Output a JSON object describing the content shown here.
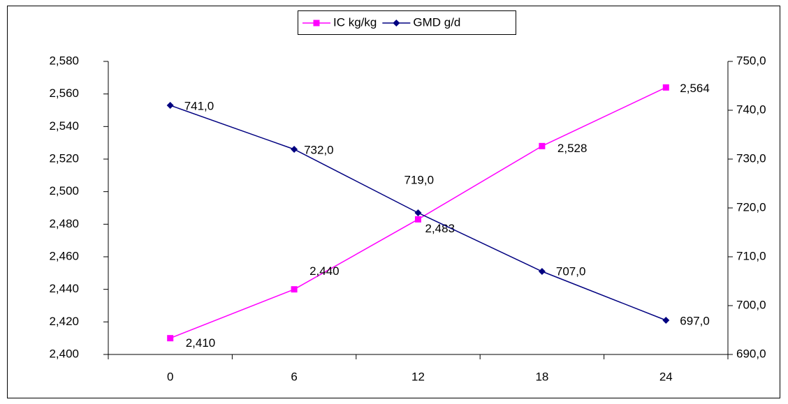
{
  "chart_data": {
    "type": "line",
    "categories": [
      "0",
      "6",
      "12",
      "18",
      "24"
    ],
    "series": [
      {
        "name": "IC kg/kg",
        "color": "#ff00ff",
        "marker": "square",
        "values": [
          2.41,
          2.44,
          2.483,
          2.528,
          2.564
        ],
        "value_labels": [
          "2,410",
          "2,440",
          "2,483",
          "2,528",
          "2,564"
        ]
      },
      {
        "name": "GMD g/d",
        "color": "#000080",
        "marker": "diamond",
        "axis": "y2",
        "values": [
          741,
          732,
          719,
          707,
          697
        ],
        "value_labels": [
          "741,0",
          "732,0",
          "719,0",
          "707,0",
          "697,0"
        ]
      }
    ],
    "ylim": [
      2.4,
      2.58
    ],
    "yticks": [
      {
        "value": 2.4,
        "label": "2,400"
      },
      {
        "value": 2.42,
        "label": "2,420"
      },
      {
        "value": 2.44,
        "label": "2,440"
      },
      {
        "value": 2.46,
        "label": "2,460"
      },
      {
        "value": 2.48,
        "label": "2,480"
      },
      {
        "value": 2.5,
        "label": "2,500"
      },
      {
        "value": 2.52,
        "label": "2,520"
      },
      {
        "value": 2.54,
        "label": "2,540"
      },
      {
        "value": 2.56,
        "label": "2,560"
      },
      {
        "value": 2.58,
        "label": "2,580"
      }
    ],
    "y2lim": [
      690,
      750
    ],
    "y2ticks": [
      {
        "value": 690,
        "label": "690,0"
      },
      {
        "value": 700,
        "label": "700,0"
      },
      {
        "value": 710,
        "label": "710,0"
      },
      {
        "value": 720,
        "label": "720,0"
      },
      {
        "value": 730,
        "label": "730,0"
      },
      {
        "value": 740,
        "label": "740,0"
      },
      {
        "value": 750,
        "label": "750,0"
      }
    ],
    "grid": false,
    "legend": "top"
  }
}
